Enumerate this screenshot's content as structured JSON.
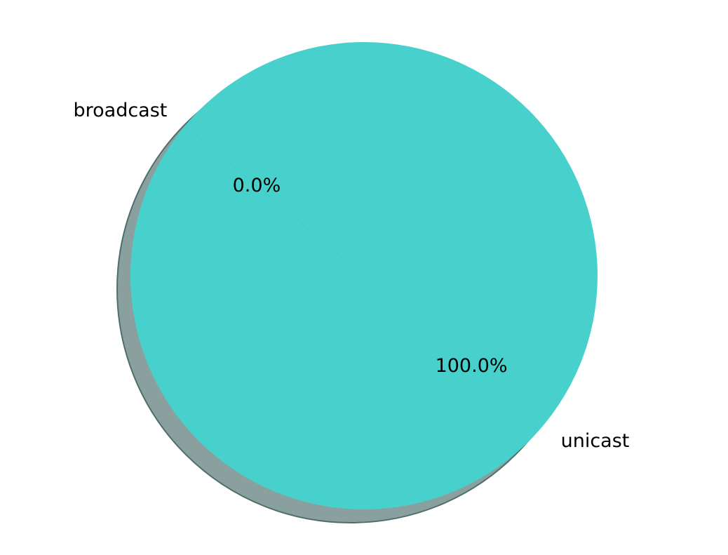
{
  "chart_data": {
    "type": "pie",
    "slices": [
      {
        "label": "unicast",
        "value": 100.0,
        "pct_label": "100.0%",
        "color": "#48d1cc"
      },
      {
        "label": "broadcast",
        "value": 0.0,
        "pct_label": "0.0%",
        "color": "#48d1cc"
      }
    ],
    "shadow_color": "#8aa09e",
    "shadow_edge_color": "#4f6e6b"
  }
}
